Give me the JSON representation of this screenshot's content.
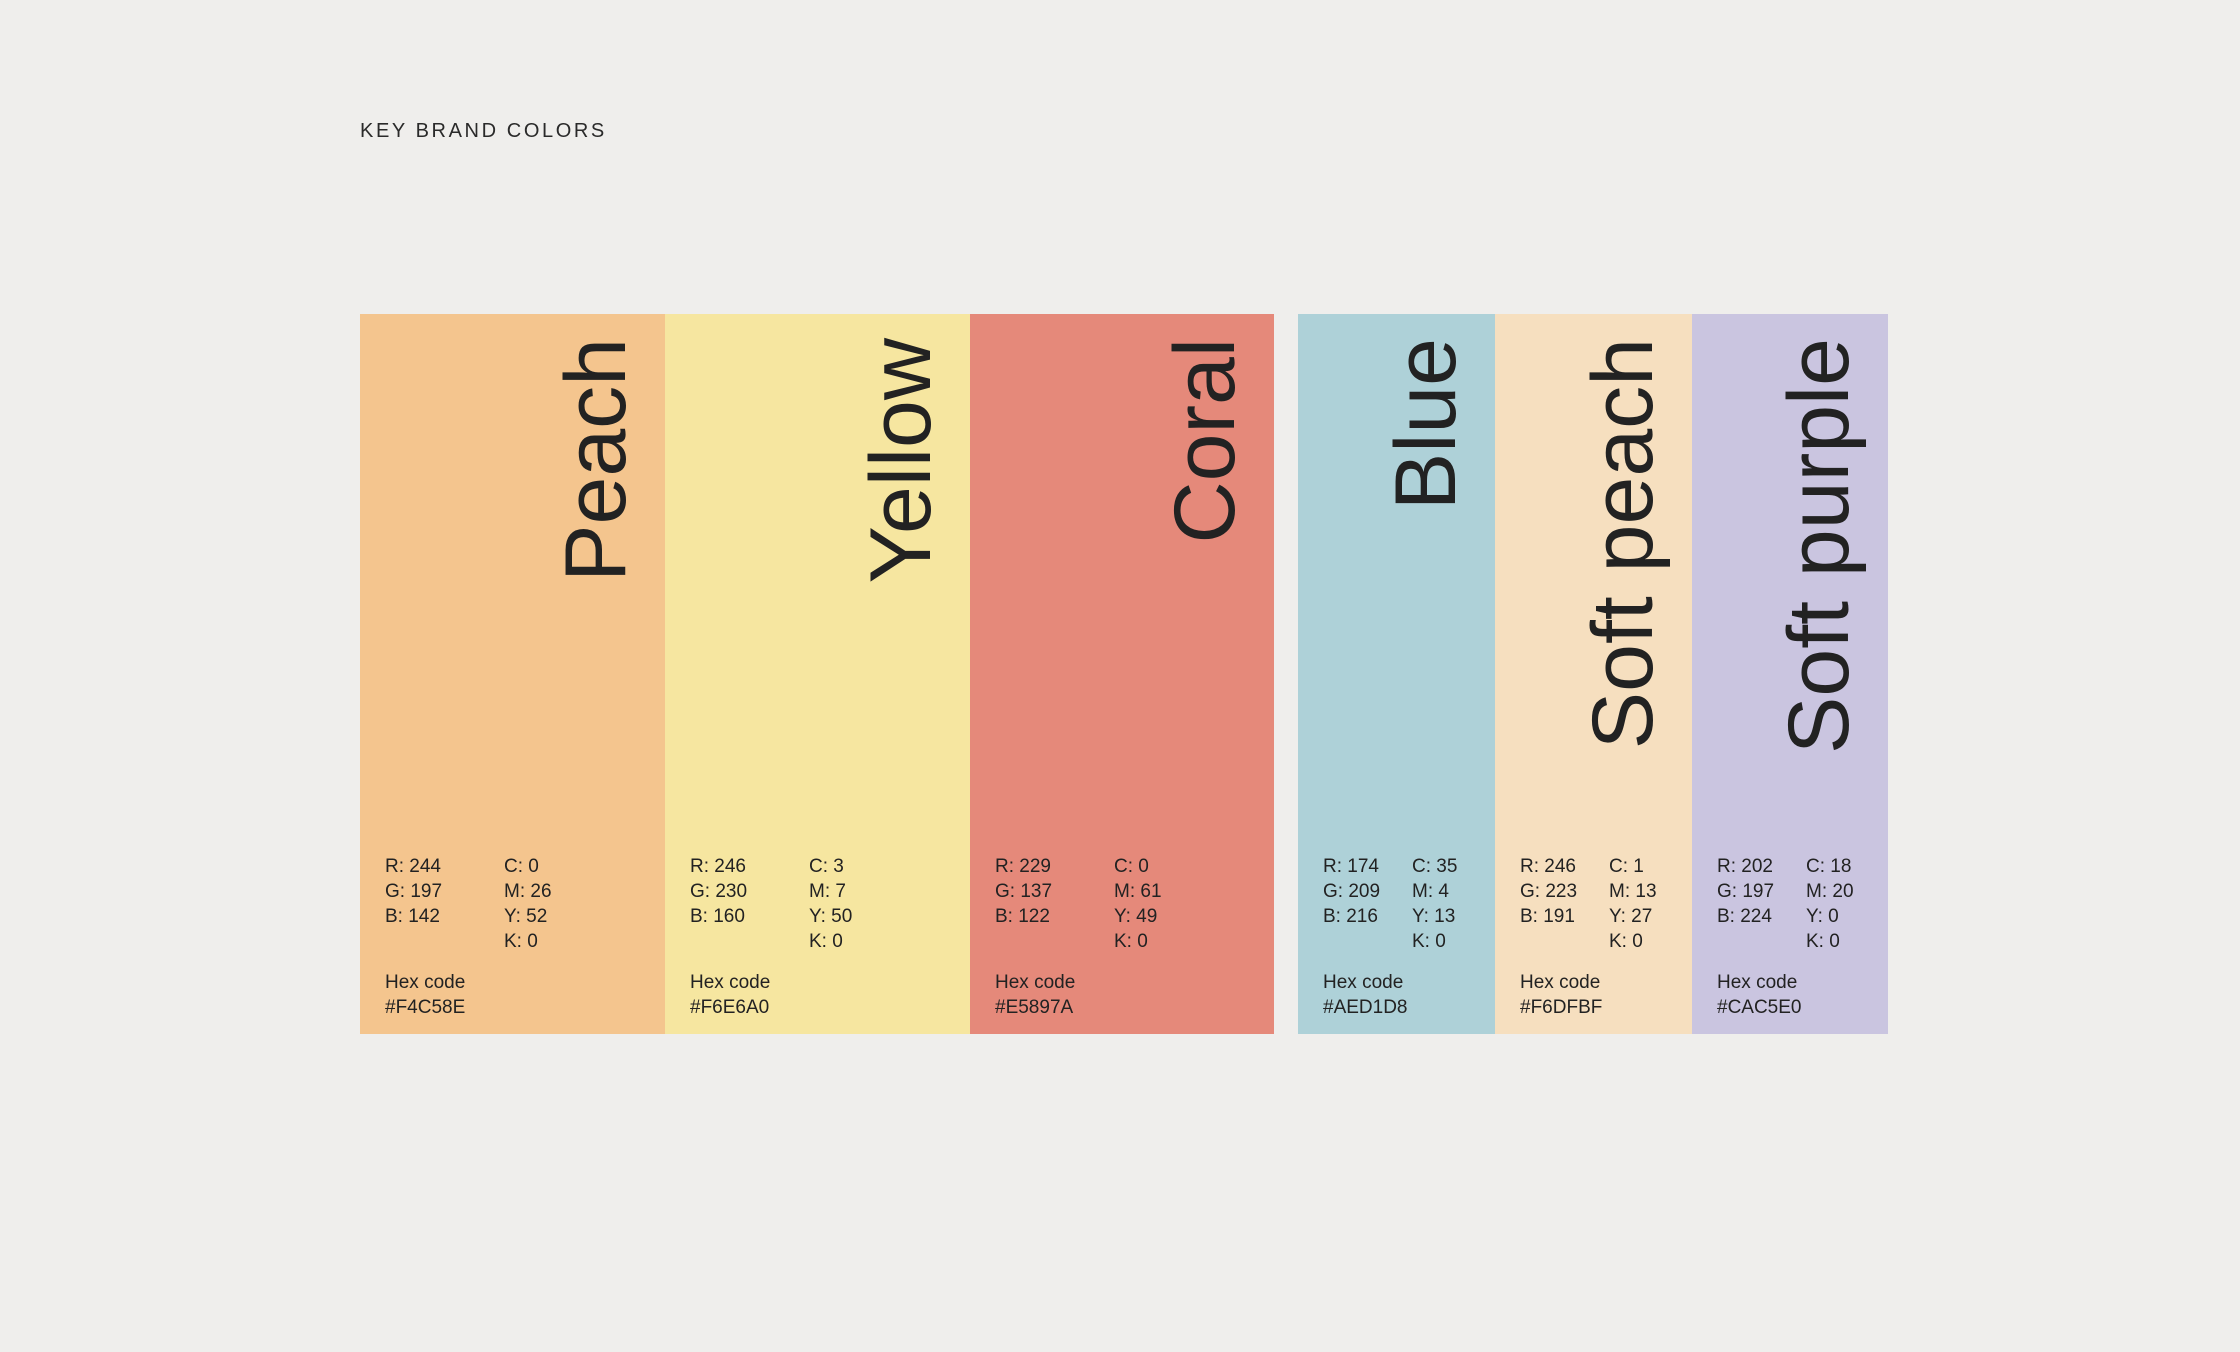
{
  "page_title": "KEY BRAND COLORS",
  "hex_label": "Hex code",
  "colors": [
    {
      "name": "Peach",
      "swatch_color": "#F4C58E",
      "r": "R: 244",
      "g": "G: 197",
      "b": "B: 142",
      "c": "C: 0",
      "m": "M: 26",
      "y": "Y: 52",
      "k": "K: 0",
      "hex": "#F4C58E"
    },
    {
      "name": "Yellow",
      "swatch_color": "#F6E6A0",
      "r": "R: 246",
      "g": "G: 230",
      "b": "B: 160",
      "c": "C: 3",
      "m": "M: 7",
      "y": "Y: 50",
      "k": "K: 0",
      "hex": "#F6E6A0"
    },
    {
      "name": "Coral",
      "swatch_color": "#E5897A",
      "r": "R: 229",
      "g": "G: 137",
      "b": "B: 122",
      "c": "C: 0",
      "m": "M: 61",
      "y": "Y: 49",
      "k": "K: 0",
      "hex": "#E5897A"
    },
    {
      "name": "Blue",
      "swatch_color": "#AED1D8",
      "r": "R: 174",
      "g": "G: 209",
      "b": "B: 216",
      "c": "C: 35",
      "m": "M: 4",
      "y": "Y: 13",
      "k": "K: 0",
      "hex": "#AED1D8"
    },
    {
      "name": "Soft  peach",
      "swatch_color": "#F6DFBF",
      "r": "R: 246",
      "g": "G: 223",
      "b": "B: 191",
      "c": "C: 1",
      "m": "M: 13",
      "y": "Y: 27",
      "k": "K: 0",
      "hex": "#F6DFBF"
    },
    {
      "name": "Soft purple",
      "swatch_color": "#CAC5E0",
      "r": "R: 202",
      "g": "G: 197",
      "b": "B: 224",
      "c": "C: 18",
      "m": "M: 20",
      "y": "Y: 0",
      "k": "K: 0",
      "hex": "#CAC5E0"
    }
  ]
}
